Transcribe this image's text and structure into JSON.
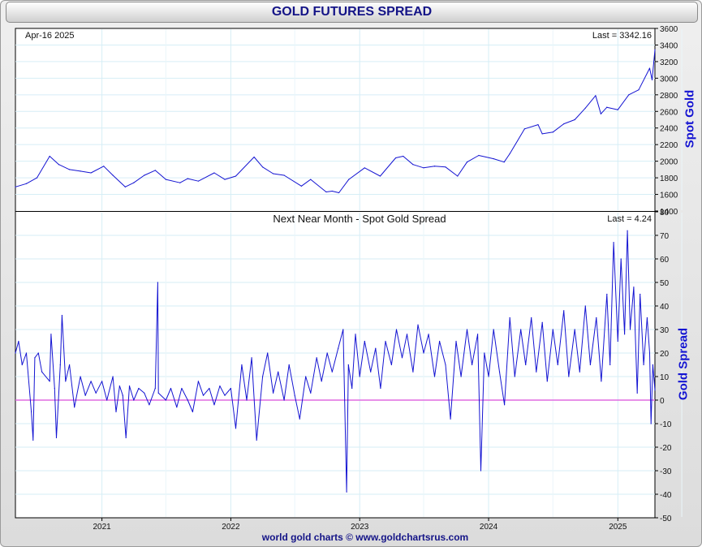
{
  "title": "GOLD FUTURES SPREAD",
  "footer": "world gold charts © www.goldchartsrus.com",
  "chart_data": [
    {
      "type": "line",
      "date_label": "Apr-16  2025",
      "last_label": "Last = 3342.16",
      "ylabel": "Spot Gold",
      "ylim": [
        1400,
        3600
      ],
      "yticks": [
        1400,
        1600,
        1800,
        2000,
        2200,
        2400,
        2600,
        2800,
        3000,
        3200,
        3400,
        3600
      ],
      "xlim": [
        "2020-05-01",
        "2025-04-16"
      ],
      "xticks": [
        "2021",
        "2022",
        "2023",
        "2024",
        "2025"
      ],
      "grid": true,
      "series": [
        {
          "color": "#1414d2",
          "points": [
            [
              "2020-05-01",
              1690
            ],
            [
              "2020-06-01",
              1730
            ],
            [
              "2020-07-01",
              1800
            ],
            [
              "2020-08-06",
              2060
            ],
            [
              "2020-09-01",
              1960
            ],
            [
              "2020-10-01",
              1900
            ],
            [
              "2020-11-01",
              1880
            ],
            [
              "2020-12-01",
              1860
            ],
            [
              "2021-01-06",
              1940
            ],
            [
              "2021-02-01",
              1830
            ],
            [
              "2021-03-08",
              1690
            ],
            [
              "2021-04-01",
              1740
            ],
            [
              "2021-05-01",
              1830
            ],
            [
              "2021-06-01",
              1890
            ],
            [
              "2021-07-01",
              1780
            ],
            [
              "2021-08-10",
              1740
            ],
            [
              "2021-09-01",
              1790
            ],
            [
              "2021-10-01",
              1760
            ],
            [
              "2021-11-15",
              1860
            ],
            [
              "2021-12-15",
              1780
            ],
            [
              "2022-01-15",
              1820
            ],
            [
              "2022-03-08",
              2050
            ],
            [
              "2022-04-01",
              1930
            ],
            [
              "2022-05-01",
              1850
            ],
            [
              "2022-06-01",
              1830
            ],
            [
              "2022-07-20",
              1700
            ],
            [
              "2022-08-15",
              1780
            ],
            [
              "2022-09-28",
              1630
            ],
            [
              "2022-10-15",
              1640
            ],
            [
              "2022-11-03",
              1620
            ],
            [
              "2022-12-01",
              1780
            ],
            [
              "2023-01-15",
              1920
            ],
            [
              "2023-02-28",
              1820
            ],
            [
              "2023-04-13",
              2040
            ],
            [
              "2023-05-04",
              2060
            ],
            [
              "2023-06-01",
              1960
            ],
            [
              "2023-07-01",
              1920
            ],
            [
              "2023-08-01",
              1940
            ],
            [
              "2023-09-01",
              1930
            ],
            [
              "2023-10-05",
              1820
            ],
            [
              "2023-11-01",
              1990
            ],
            [
              "2023-12-04",
              2070
            ],
            [
              "2024-01-15",
              2030
            ],
            [
              "2024-02-14",
              1990
            ],
            [
              "2024-03-01",
              2090
            ],
            [
              "2024-04-12",
              2390
            ],
            [
              "2024-05-20",
              2440
            ],
            [
              "2024-06-01",
              2330
            ],
            [
              "2024-07-01",
              2350
            ],
            [
              "2024-08-01",
              2450
            ],
            [
              "2024-09-01",
              2500
            ],
            [
              "2024-10-01",
              2640
            ],
            [
              "2024-10-30",
              2790
            ],
            [
              "2024-11-14",
              2570
            ],
            [
              "2024-12-01",
              2650
            ],
            [
              "2025-01-01",
              2620
            ],
            [
              "2025-02-01",
              2800
            ],
            [
              "2025-03-01",
              2860
            ],
            [
              "2025-04-01",
              3120
            ],
            [
              "2025-04-08",
              2980
            ],
            [
              "2025-04-16",
              3342
            ]
          ]
        }
      ]
    },
    {
      "type": "line",
      "title": "Next Near Month - Spot Gold Spread",
      "last_label": "Last = 4.24",
      "ylabel": "Gold Spread",
      "ylim": [
        -50,
        80
      ],
      "yticks": [
        -50,
        -40,
        -30,
        -20,
        -10,
        0,
        10,
        20,
        30,
        40,
        50,
        60,
        70,
        80
      ],
      "xlim": [
        "2020-05-01",
        "2025-04-16"
      ],
      "xticks": [
        "2021",
        "2022",
        "2023",
        "2024",
        "2025"
      ],
      "grid": true,
      "zero_line_color": "#e06ce0",
      "series": [
        {
          "color": "#1414d2",
          "points": [
            [
              "2020-05-01",
              20
            ],
            [
              "2020-05-10",
              25
            ],
            [
              "2020-05-20",
              15
            ],
            [
              "2020-06-01",
              20
            ],
            [
              "2020-06-15",
              -5
            ],
            [
              "2020-06-20",
              -17
            ],
            [
              "2020-06-25",
              18
            ],
            [
              "2020-07-05",
              20
            ],
            [
              "2020-07-15",
              12
            ],
            [
              "2020-08-06",
              8
            ],
            [
              "2020-08-10",
              28
            ],
            [
              "2020-08-20",
              5
            ],
            [
              "2020-08-25",
              -16
            ],
            [
              "2020-09-05",
              15
            ],
            [
              "2020-09-10",
              36
            ],
            [
              "2020-09-20",
              8
            ],
            [
              "2020-10-01",
              15
            ],
            [
              "2020-10-15",
              -3
            ],
            [
              "2020-11-01",
              10
            ],
            [
              "2020-11-15",
              2
            ],
            [
              "2020-12-01",
              8
            ],
            [
              "2020-12-15",
              3
            ],
            [
              "2021-01-01",
              8
            ],
            [
              "2021-01-15",
              0
            ],
            [
              "2021-02-01",
              10
            ],
            [
              "2021-02-10",
              -5
            ],
            [
              "2021-02-20",
              6
            ],
            [
              "2021-03-01",
              2
            ],
            [
              "2021-03-10",
              -16
            ],
            [
              "2021-03-20",
              6
            ],
            [
              "2021-04-01",
              0
            ],
            [
              "2021-04-15",
              5
            ],
            [
              "2021-05-01",
              3
            ],
            [
              "2021-05-15",
              -2
            ],
            [
              "2021-06-01",
              5
            ],
            [
              "2021-06-08",
              50
            ],
            [
              "2021-06-10",
              3
            ],
            [
              "2021-07-01",
              0
            ],
            [
              "2021-07-15",
              5
            ],
            [
              "2021-08-01",
              -3
            ],
            [
              "2021-08-15",
              5
            ],
            [
              "2021-09-01",
              0
            ],
            [
              "2021-09-15",
              -5
            ],
            [
              "2021-10-01",
              8
            ],
            [
              "2021-10-15",
              2
            ],
            [
              "2021-11-01",
              5
            ],
            [
              "2021-11-15",
              -2
            ],
            [
              "2021-12-01",
              6
            ],
            [
              "2021-12-15",
              2
            ],
            [
              "2022-01-01",
              5
            ],
            [
              "2022-01-15",
              -12
            ],
            [
              "2022-02-01",
              15
            ],
            [
              "2022-02-15",
              0
            ],
            [
              "2022-03-01",
              18
            ],
            [
              "2022-03-15",
              -17
            ],
            [
              "2022-04-01",
              10
            ],
            [
              "2022-04-15",
              20
            ],
            [
              "2022-05-01",
              3
            ],
            [
              "2022-05-15",
              12
            ],
            [
              "2022-06-01",
              0
            ],
            [
              "2022-06-15",
              15
            ],
            [
              "2022-07-01",
              2
            ],
            [
              "2022-07-15",
              -8
            ],
            [
              "2022-08-01",
              10
            ],
            [
              "2022-08-15",
              3
            ],
            [
              "2022-09-01",
              18
            ],
            [
              "2022-09-15",
              8
            ],
            [
              "2022-10-01",
              20
            ],
            [
              "2022-10-15",
              12
            ],
            [
              "2022-11-01",
              22
            ],
            [
              "2022-11-15",
              30
            ],
            [
              "2022-11-25",
              -39
            ],
            [
              "2022-11-30",
              15
            ],
            [
              "2022-12-10",
              5
            ],
            [
              "2022-12-20",
              28
            ],
            [
              "2023-01-01",
              10
            ],
            [
              "2023-01-15",
              25
            ],
            [
              "2023-02-01",
              12
            ],
            [
              "2023-02-15",
              22
            ],
            [
              "2023-03-01",
              5
            ],
            [
              "2023-03-15",
              25
            ],
            [
              "2023-04-01",
              15
            ],
            [
              "2023-04-15",
              30
            ],
            [
              "2023-05-01",
              18
            ],
            [
              "2023-05-15",
              28
            ],
            [
              "2023-06-01",
              12
            ],
            [
              "2023-06-15",
              32
            ],
            [
              "2023-07-01",
              20
            ],
            [
              "2023-07-15",
              28
            ],
            [
              "2023-08-01",
              10
            ],
            [
              "2023-08-15",
              25
            ],
            [
              "2023-09-01",
              15
            ],
            [
              "2023-09-15",
              -8
            ],
            [
              "2023-10-01",
              25
            ],
            [
              "2023-10-15",
              10
            ],
            [
              "2023-11-01",
              30
            ],
            [
              "2023-11-15",
              15
            ],
            [
              "2023-12-01",
              28
            ],
            [
              "2023-12-10",
              -30
            ],
            [
              "2023-12-20",
              20
            ],
            [
              "2024-01-01",
              10
            ],
            [
              "2024-01-15",
              30
            ],
            [
              "2024-02-01",
              12
            ],
            [
              "2024-02-15",
              -2
            ],
            [
              "2024-03-01",
              35
            ],
            [
              "2024-03-15",
              10
            ],
            [
              "2024-04-01",
              30
            ],
            [
              "2024-04-15",
              15
            ],
            [
              "2024-05-01",
              35
            ],
            [
              "2024-05-15",
              12
            ],
            [
              "2024-06-01",
              33
            ],
            [
              "2024-06-15",
              8
            ],
            [
              "2024-07-01",
              30
            ],
            [
              "2024-07-15",
              15
            ],
            [
              "2024-08-01",
              38
            ],
            [
              "2024-08-15",
              10
            ],
            [
              "2024-09-01",
              30
            ],
            [
              "2024-09-15",
              12
            ],
            [
              "2024-10-01",
              40
            ],
            [
              "2024-10-15",
              15
            ],
            [
              "2024-11-01",
              35
            ],
            [
              "2024-11-15",
              8
            ],
            [
              "2024-12-01",
              45
            ],
            [
              "2024-12-10",
              15
            ],
            [
              "2024-12-20",
              67
            ],
            [
              "2025-01-01",
              25
            ],
            [
              "2025-01-10",
              60
            ],
            [
              "2025-01-20",
              28
            ],
            [
              "2025-01-28",
              72
            ],
            [
              "2025-02-05",
              30
            ],
            [
              "2025-02-15",
              48
            ],
            [
              "2025-02-25",
              3
            ],
            [
              "2025-03-05",
              45
            ],
            [
              "2025-03-15",
              15
            ],
            [
              "2025-03-25",
              35
            ],
            [
              "2025-04-01",
              20
            ],
            [
              "2025-04-05",
              -10
            ],
            [
              "2025-04-10",
              15
            ],
            [
              "2025-04-16",
              4.24
            ]
          ]
        }
      ]
    }
  ]
}
